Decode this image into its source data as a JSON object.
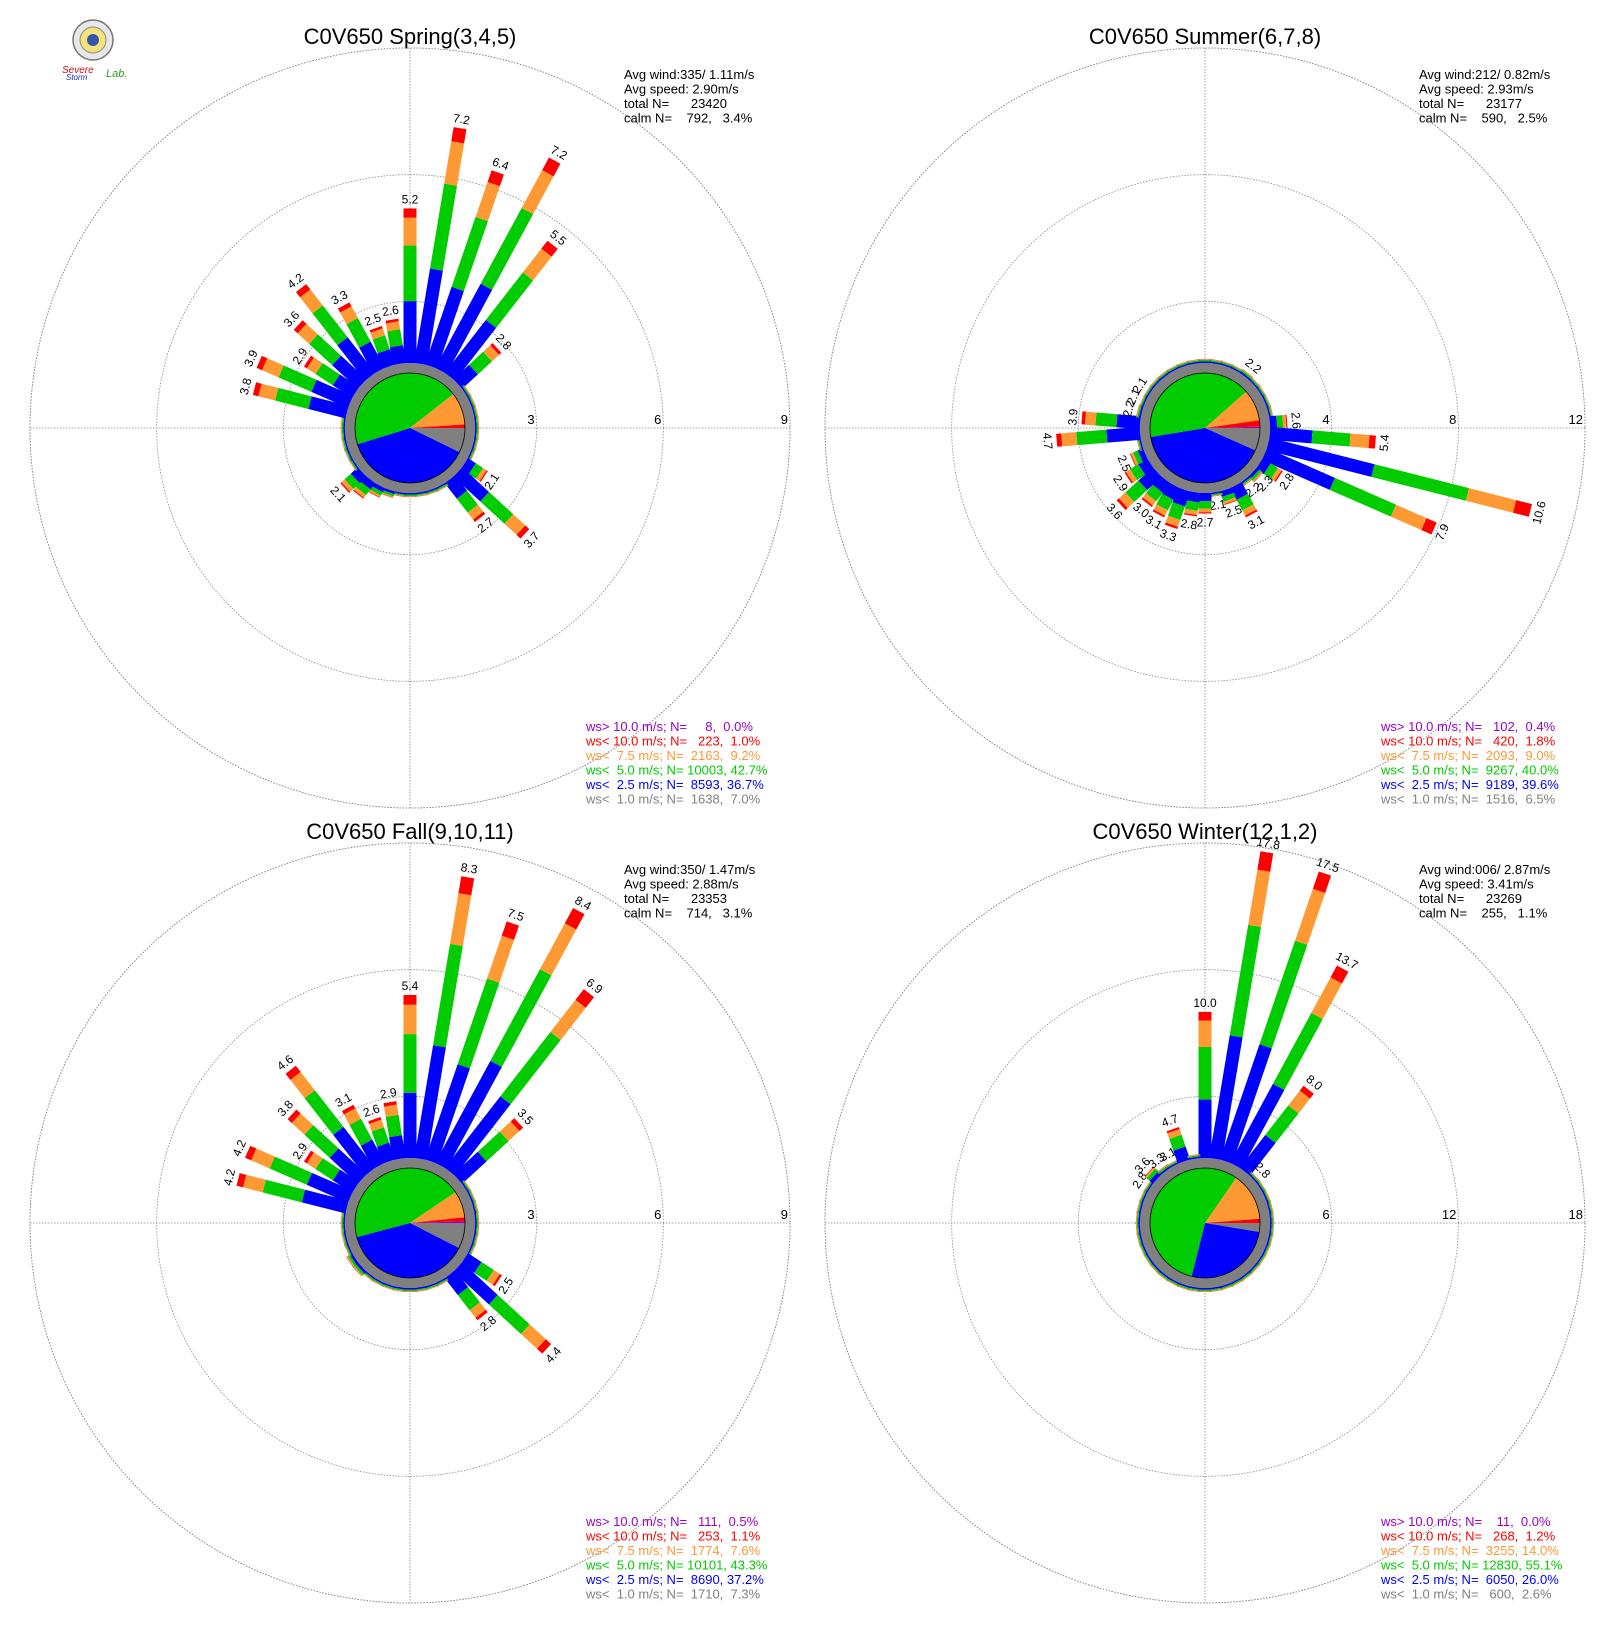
{
  "logo": {
    "text_top": "Severe",
    "text_mid": "Storm",
    "text_lab": "Lab."
  },
  "colors": {
    "gt10": "#9900cc",
    "lt10": "#ff0000",
    "lt75": "#ff9933",
    "lt50": "#00cc00",
    "lt25": "#0000ff",
    "lt10ms": "#808080"
  },
  "chart_data": [
    {
      "type": "windrose",
      "title": "C0V650 Spring(3,4,5)",
      "stats": [
        "Avg wind:335/ 1.11m/s",
        "Avg speed: 2.90m/s",
        "total N=      23420",
        "calm N=    792,   3.4%"
      ],
      "rings": [
        3,
        6,
        9
      ],
      "ring_labels": [
        "3",
        "6",
        "9"
      ],
      "rmax": 9,
      "pie": [
        0.07,
        0.367,
        0.427,
        0.092,
        0.01,
        0.0
      ],
      "sectors": [
        5.2,
        7.2,
        6.4,
        7.2,
        5.5,
        2.8,
        1.2,
        1.0,
        1.0,
        0.9,
        0.9,
        0.9,
        0.8,
        2.1,
        3.7,
        2.7,
        1.0,
        1.2,
        1.4,
        1.5,
        1.6,
        1.7,
        1.8,
        2.0,
        2.1,
        1.4,
        1.3,
        1.2,
        1.1,
        1.3,
        3.8,
        3.9,
        2.9,
        3.6,
        4.2,
        3.3,
        2.5,
        2.6
      ],
      "labeled": [
        0,
        1,
        2,
        3,
        4,
        5,
        13,
        14,
        15,
        24,
        30,
        31,
        32,
        33,
        34,
        35,
        36,
        37
      ],
      "legend": [
        "ws> 10.0 m/s; N=     8,  0.0%",
        "ws< 10.0 m/s; N=   223,  1.0%",
        "ws<  7.5 m/s; N=  2163,  9.2%",
        "ws<  5.0 m/s; N= 10003, 42.7%",
        "ws<  2.5 m/s; N=  8593, 36.7%",
        "ws<  1.0 m/s; N=  1638,  7.0%"
      ]
    },
    {
      "type": "windrose",
      "title": "C0V650 Summer(6,7,8)",
      "stats": [
        "Avg wind:212/ 0.82m/s",
        "Avg speed: 2.93m/s",
        "total N=      23177",
        "calm N=    590,   2.5%"
      ],
      "rings": [
        4,
        8,
        12
      ],
      "ring_labels": [
        "4",
        "8",
        "12"
      ],
      "rmax": 12,
      "pie": [
        0.065,
        0.396,
        0.4,
        0.09,
        0.018,
        0.004
      ],
      "sectors": [
        1.3,
        1.5,
        1.6,
        1.8,
        2.2,
        1.5,
        1.4,
        1.3,
        1.1,
        2.6,
        5.4,
        10.6,
        7.9,
        2.8,
        2.3,
        2.2,
        3.1,
        2.5,
        2.1,
        2.7,
        2.8,
        3.3,
        3.1,
        3.0,
        3.6,
        2.9,
        2.5,
        1.3,
        4.7,
        3.9,
        2.2,
        2.1,
        2.1,
        1.5,
        1.4,
        1.3,
        1.4,
        1.4
      ],
      "labeled": [
        4,
        9,
        10,
        11,
        12,
        13,
        14,
        15,
        16,
        17,
        18,
        19,
        20,
        21,
        22,
        23,
        24,
        25,
        26,
        28,
        29,
        30,
        31,
        32
      ],
      "legend": [
        "ws> 10.0 m/s; N=   102,  0.4%",
        "ws< 10.0 m/s; N=   420,  1.8%",
        "ws<  7.5 m/s; N=  2093,  9.0%",
        "ws<  5.0 m/s; N=  9267, 40.0%",
        "ws<  2.5 m/s; N=  9189, 39.6%",
        "ws<  1.0 m/s; N=  1516,  6.5%"
      ]
    },
    {
      "type": "windrose",
      "title": "C0V650 Fall(9,10,11)",
      "stats": [
        "Avg wind:350/ 1.47m/s",
        "Avg speed: 2.88m/s",
        "total N=      23353",
        "calm N=    714,   3.1%"
      ],
      "rings": [
        3,
        6,
        9
      ],
      "ring_labels": [
        "3",
        "6",
        "9"
      ],
      "rmax": 9,
      "pie": [
        0.073,
        0.372,
        0.433,
        0.076,
        0.011,
        0.005
      ],
      "sectors": [
        5.4,
        8.3,
        7.5,
        8.4,
        6.9,
        3.5,
        1.3,
        1.1,
        1.0,
        0.9,
        1.0,
        1.2,
        1.3,
        2.5,
        4.4,
        2.8,
        1.1,
        1.0,
        1.0,
        1.2,
        1.3,
        1.4,
        1.5,
        1.6,
        1.7,
        1.7,
        1.6,
        1.4,
        1.2,
        1.4,
        4.2,
        4.2,
        2.9,
        3.8,
        4.6,
        3.1,
        2.6,
        2.9
      ],
      "labeled": [
        0,
        1,
        2,
        3,
        4,
        5,
        13,
        14,
        15,
        30,
        31,
        32,
        33,
        34,
        35,
        36,
        37
      ],
      "legend": [
        "ws> 10.0 m/s; N=   111,  0.5%",
        "ws< 10.0 m/s; N=   253,  1.1%",
        "ws<  7.5 m/s; N=  1774,  7.6%",
        "ws<  5.0 m/s; N= 10101, 43.3%",
        "ws<  2.5 m/s; N=  8690, 37.2%",
        "ws<  1.0 m/s; N=  1710,  7.3%"
      ]
    },
    {
      "type": "windrose",
      "title": "C0V650 Winter(12,1,2)",
      "stats": [
        "Avg wind:006/ 2.87m/s",
        "Avg speed: 3.41m/s",
        "total N=      23269",
        "calm N=    255,   1.1%"
      ],
      "rings": [
        6,
        12,
        18
      ],
      "ring_labels": [
        "6",
        "12",
        "18"
      ],
      "rmax": 18,
      "pie": [
        0.026,
        0.26,
        0.551,
        0.14,
        0.012,
        0.0
      ],
      "sectors": [
        10.0,
        17.8,
        17.5,
        13.7,
        8.0,
        2.8,
        1.2,
        0.8,
        0.6,
        0.4,
        0.3,
        0.3,
        0.3,
        0.3,
        0.3,
        0.3,
        0.3,
        0.3,
        0.3,
        0.3,
        0.3,
        0.3,
        0.3,
        0.3,
        0.3,
        0.3,
        0.3,
        0.3,
        0.3,
        0.4,
        0.8,
        1.6,
        2.8,
        3.6,
        3.3,
        3.1,
        4.7,
        1.8
      ],
      "labeled": [
        0,
        1,
        2,
        3,
        4,
        5,
        32,
        33,
        34,
        35,
        36
      ],
      "legend": [
        "ws> 10.0 m/s; N=    11,  0.0%",
        "ws< 10.0 m/s; N=   268,  1.2%",
        "ws<  7.5 m/s; N=  3255, 14.0%",
        "ws<  5.0 m/s; N= 12830, 55.1%",
        "ws<  2.5 m/s; N=  6050, 26.0%",
        "ws<  1.0 m/s; N=   600,  2.6%"
      ]
    }
  ]
}
